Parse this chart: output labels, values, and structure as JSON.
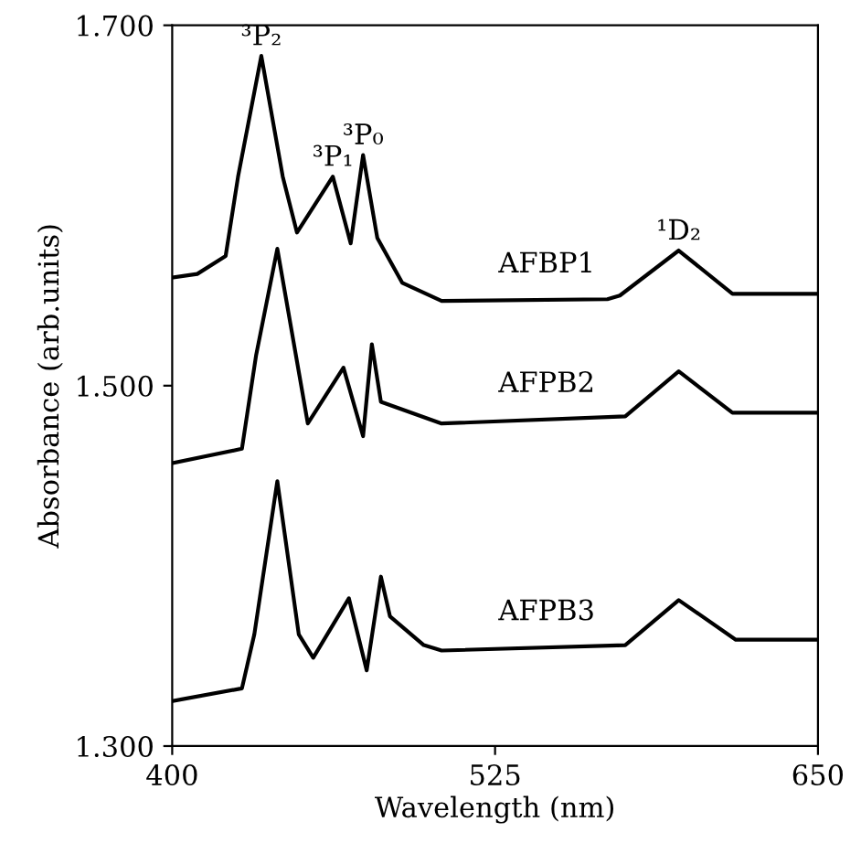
{
  "chart_data": {
    "type": "line",
    "xlabel": "Wavelength (nm)",
    "ylabel": "Absorbance (arb.units)",
    "xlim": [
      400,
      650
    ],
    "ylim": [
      1.3,
      1.7
    ],
    "xticks": [
      400,
      525,
      650
    ],
    "yticks": [
      {
        "value": 1.3,
        "label": "1.300"
      },
      {
        "value": 1.5,
        "label": "1.500"
      },
      {
        "value": 1.7,
        "label": "1.700"
      }
    ],
    "grid": false,
    "legend": false,
    "marker": "none",
    "line_style": "solid",
    "series": [
      {
        "name": "AFBP1",
        "color": "#000000",
        "x": [
          400,
          409.7,
          420.7,
          425.5,
          434.5,
          442.8,
          448.3,
          462.2,
          469.1,
          473.9,
          479.4,
          489.1,
          504.3,
          568.5,
          573.3,
          596.1,
          616.9,
          650
        ],
        "values": [
          1.56,
          1.562,
          1.572,
          1.616,
          1.683,
          1.616,
          1.585,
          1.616,
          1.579,
          1.628,
          1.582,
          1.557,
          1.547,
          1.548,
          1.55,
          1.575,
          1.551,
          1.551
        ]
      },
      {
        "name": "AFPB2",
        "color": "#000000",
        "x": [
          400,
          427,
          432.5,
          440.7,
          452.5,
          466.3,
          473.9,
          477.3,
          480.8,
          504.3,
          575.4,
          596.1,
          616.9,
          650
        ],
        "values": [
          1.457,
          1.465,
          1.517,
          1.576,
          1.479,
          1.51,
          1.472,
          1.523,
          1.491,
          1.479,
          1.483,
          1.508,
          1.485,
          1.485
        ]
      },
      {
        "name": "AFPB3",
        "color": "#000000",
        "x": [
          400,
          427,
          431.8,
          440.7,
          449,
          454.6,
          468.4,
          475.3,
          480.8,
          484.3,
          497.4,
          504.3,
          575.4,
          596.1,
          618.2,
          650
        ],
        "values": [
          1.325,
          1.332,
          1.362,
          1.447,
          1.362,
          1.349,
          1.382,
          1.342,
          1.394,
          1.372,
          1.356,
          1.353,
          1.356,
          1.381,
          1.359,
          1.359
        ]
      }
    ],
    "annotations": [
      {
        "text": "³P₂",
        "x": 434.5,
        "y": 1.683
      },
      {
        "text": "³P₁",
        "x": 462.2,
        "y": 1.616
      },
      {
        "text": "³P₀",
        "x": 473.9,
        "y": 1.628
      },
      {
        "text": "¹D₂",
        "x": 596.1,
        "y": 1.575
      }
    ]
  }
}
